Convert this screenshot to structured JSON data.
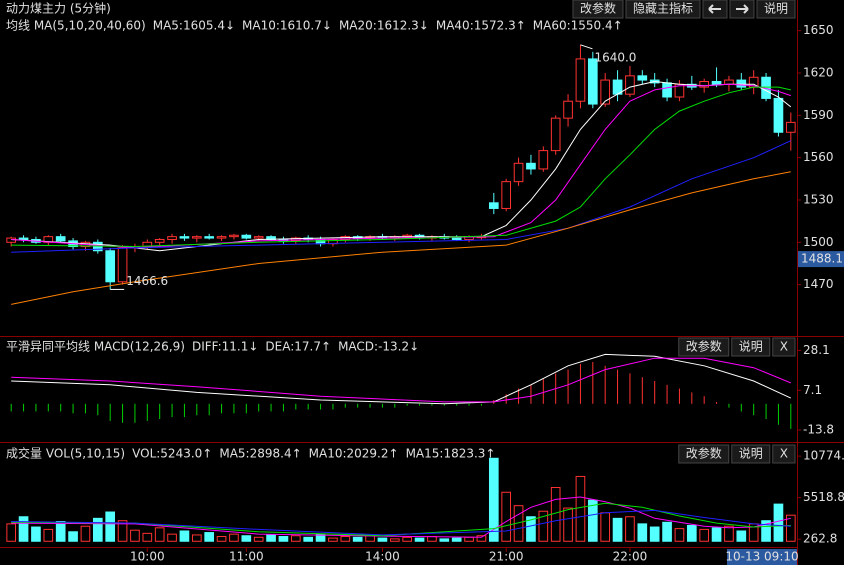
{
  "chart_data": [
    {
      "type": "candlestick",
      "title": "动力煤主力 (5分钟)",
      "label": "均线 MA(5,10,20,40,60)",
      "buttons": [
        "改参数",
        "隐藏主指标",
        "说明"
      ],
      "up_color": "#ff3232",
      "down_color": "#54ffff",
      "ylim": [
        1435,
        1659
      ],
      "yticks": [
        1650,
        1620,
        1590,
        1560,
        1530,
        1500,
        1470
      ],
      "current_price": 1488.1,
      "high_label": {
        "value": 1640,
        "label": "1640.0"
      },
      "low_label": {
        "value": 1466.6,
        "label": "1466.6"
      },
      "candles": [
        [
          1500,
          1504,
          1497,
          1503
        ],
        [
          1503,
          1505,
          1500,
          1502
        ],
        [
          1502,
          1504,
          1499,
          1500
        ],
        [
          1500,
          1505,
          1498,
          1504
        ],
        [
          1504,
          1506,
          1500,
          1501
        ],
        [
          1501,
          1503,
          1495,
          1497
        ],
        [
          1497,
          1501,
          1494,
          1500
        ],
        [
          1500,
          1502,
          1492,
          1494
        ],
        [
          1494,
          1496,
          1466.6,
          1472
        ],
        [
          1472,
          1498,
          1470,
          1496
        ],
        [
          1496,
          1499,
          1493,
          1497
        ],
        [
          1497,
          1502,
          1495,
          1500
        ],
        [
          1500,
          1503,
          1497,
          1502
        ],
        [
          1502,
          1506,
          1499,
          1504
        ],
        [
          1504,
          1506,
          1501,
          1503
        ],
        [
          1503,
          1505,
          1500,
          1504
        ],
        [
          1504,
          1506,
          1502,
          1503
        ],
        [
          1503,
          1505,
          1501,
          1504
        ],
        [
          1504,
          1506,
          1502,
          1505
        ],
        [
          1505,
          1506,
          1502,
          1503
        ],
        [
          1503,
          1505,
          1501,
          1504
        ],
        [
          1504,
          1505,
          1501,
          1502
        ],
        [
          1502,
          1504,
          1499,
          1501
        ],
        [
          1501,
          1504,
          1499,
          1503
        ],
        [
          1503,
          1505,
          1500,
          1502
        ],
        [
          1502,
          1504,
          1497,
          1499
        ],
        [
          1499,
          1503,
          1497,
          1502
        ],
        [
          1502,
          1505,
          1500,
          1504
        ],
        [
          1504,
          1505,
          1501,
          1503
        ],
        [
          1503,
          1505,
          1501,
          1504
        ],
        [
          1504,
          1506,
          1502,
          1503
        ],
        [
          1503,
          1505,
          1501,
          1504
        ],
        [
          1504,
          1506,
          1503,
          1505
        ],
        [
          1505,
          1506,
          1502,
          1503
        ],
        [
          1503,
          1505,
          1501,
          1504
        ],
        [
          1504,
          1506,
          1502,
          1503
        ],
        [
          1503,
          1505,
          1501,
          1502
        ],
        [
          1502,
          1505,
          1500,
          1504
        ],
        [
          1504,
          1506,
          1502,
          1504
        ],
        [
          1528,
          1535,
          1520,
          1524
        ],
        [
          1524,
          1545,
          1522,
          1543
        ],
        [
          1543,
          1560,
          1540,
          1556
        ],
        [
          1556,
          1562,
          1548,
          1552
        ],
        [
          1552,
          1568,
          1550,
          1565
        ],
        [
          1565,
          1590,
          1562,
          1588
        ],
        [
          1588,
          1605,
          1582,
          1600
        ],
        [
          1600,
          1640,
          1595,
          1630
        ],
        [
          1630,
          1635,
          1595,
          1598
        ],
        [
          1598,
          1620,
          1596,
          1615
        ],
        [
          1615,
          1622,
          1600,
          1605
        ],
        [
          1605,
          1625,
          1603,
          1618
        ],
        [
          1618,
          1622,
          1612,
          1615
        ],
        [
          1615,
          1620,
          1610,
          1613
        ],
        [
          1613,
          1616,
          1600,
          1603
        ],
        [
          1603,
          1615,
          1600,
          1612
        ],
        [
          1612,
          1618,
          1608,
          1610
        ],
        [
          1610,
          1616,
          1606,
          1614
        ],
        [
          1614,
          1624,
          1610,
          1612
        ],
        [
          1612,
          1618,
          1607,
          1615
        ],
        [
          1615,
          1620,
          1608,
          1610
        ],
        [
          1610,
          1622,
          1605,
          1617
        ],
        [
          1617,
          1620,
          1600,
          1602
        ],
        [
          1602,
          1608,
          1575,
          1578
        ],
        [
          1578,
          1592,
          1565,
          1585
        ]
      ],
      "series": [
        {
          "name": "MA5:1605.4↓",
          "color": "#ffffff",
          "x": [
            0,
            8,
            12,
            20,
            30,
            38,
            40,
            42,
            44,
            46,
            48,
            50,
            52,
            54,
            56,
            58,
            60,
            62,
            63
          ],
          "values": [
            1502,
            1498,
            1494,
            1502,
            1504,
            1504,
            1512,
            1530,
            1552,
            1580,
            1600,
            1610,
            1614,
            1612,
            1611,
            1612,
            1612,
            1603,
            1596
          ]
        },
        {
          "name": "MA10:1610.7↓",
          "color": "#ff00ff",
          "x": [
            0,
            10,
            20,
            30,
            39,
            42,
            44,
            46,
            48,
            50,
            52,
            54,
            56,
            58,
            60,
            62,
            63
          ],
          "values": [
            1502,
            1496,
            1501,
            1503,
            1504,
            1514,
            1530,
            1555,
            1580,
            1600,
            1608,
            1611,
            1611,
            1612,
            1611,
            1607,
            1604
          ]
        },
        {
          "name": "MA20:1612.3↓",
          "color": "#00e000",
          "x": [
            0,
            10,
            20,
            30,
            40,
            44,
            46,
            48,
            50,
            52,
            54,
            56,
            58,
            60,
            62,
            63
          ],
          "values": [
            1498,
            1497,
            1500,
            1502,
            1505,
            1515,
            1525,
            1545,
            1562,
            1580,
            1593,
            1600,
            1606,
            1610,
            1610,
            1608
          ]
        },
        {
          "name": "MA40:1572.3↑",
          "color": "#2020ff",
          "x": [
            0,
            10,
            20,
            30,
            40,
            45,
            50,
            55,
            60,
            63
          ],
          "values": [
            1493,
            1496,
            1498,
            1500,
            1502,
            1510,
            1525,
            1545,
            1560,
            1572
          ]
        },
        {
          "name": "MA60:1550.4↑",
          "color": "#ff8000",
          "x": [
            0,
            5,
            10,
            20,
            30,
            40,
            45,
            50,
            55,
            60,
            63
          ],
          "values": [
            1456,
            1465,
            1472,
            1485,
            1493,
            1498,
            1510,
            1523,
            1535,
            1545,
            1550
          ]
        }
      ]
    },
    {
      "type": "macd",
      "label": "平滑异同平均线 MACD(12,26,9)",
      "buttons": [
        "改参数",
        "说明",
        "X"
      ],
      "ylim": [
        -18,
        32
      ],
      "yticks": [
        28.1,
        7.1,
        -13.8
      ],
      "up_color": "#ff3232",
      "down_color": "#00d000",
      "values": [
        -4,
        -4,
        -4,
        -4,
        -4,
        -5,
        -5,
        -6,
        -9,
        -10,
        -10,
        -9,
        -8,
        -7,
        -7,
        -6,
        -6,
        -5,
        -5,
        -5,
        -4,
        -4,
        -4,
        -3,
        -3,
        -3,
        -3,
        -2,
        -2,
        -2,
        -2,
        -2,
        -1,
        -1,
        -1,
        -1,
        -1,
        -1,
        -1,
        2,
        5,
        8,
        10,
        13,
        16,
        18,
        21,
        22,
        20,
        18,
        16,
        14,
        12,
        10,
        8,
        6,
        4,
        1,
        -2,
        -4,
        -6,
        -8,
        -11,
        -13.2
      ],
      "series": [
        {
          "name": "DIFF:11.1↓",
          "color": "#ffffff",
          "x": [
            0,
            8,
            15,
            25,
            35,
            39,
            42,
            45,
            48,
            52,
            56,
            60,
            63
          ],
          "values": [
            12,
            10,
            6,
            2,
            0,
            1,
            10,
            20,
            26,
            25,
            20,
            12,
            3
          ]
        },
        {
          "name": "DEA:17.7↑",
          "color": "#ff00ff",
          "x": [
            0,
            8,
            15,
            25,
            35,
            39,
            42,
            45,
            48,
            52,
            56,
            60,
            63
          ],
          "values": [
            14,
            12,
            9,
            4,
            1,
            1,
            4,
            10,
            18,
            24,
            24,
            19,
            11
          ]
        }
      ],
      "macd_label": "MACD:-13.2↓",
      "macd_label_color": "#00e000"
    },
    {
      "type": "bar",
      "label": "成交量 VOL(5,10,15)",
      "buttons": [
        "改参数",
        "说明",
        "X"
      ],
      "ylim": [
        -600,
        11800
      ],
      "yticks": [
        10774.8,
        5518.8,
        262.8
      ],
      "vol_label": "VOL:5243.0↑",
      "values": [
        2200,
        3100,
        1800,
        1500,
        2500,
        1200,
        1900,
        2900,
        3700,
        2600,
        1400,
        1000,
        1700,
        900,
        1300,
        800,
        1100,
        600,
        900,
        700,
        500,
        800,
        600,
        700,
        500,
        900,
        400,
        600,
        500,
        700,
        400,
        300,
        500,
        400,
        600,
        300,
        400,
        500,
        700,
        10500,
        6200,
        4500,
        3100,
        3800,
        6800,
        4200,
        8200,
        5200,
        3600,
        2900,
        3100,
        2200,
        1800,
        2400,
        1600,
        2000,
        1500,
        1700,
        1900,
        1300,
        2200,
        2600,
        4700,
        3300
      ],
      "series": [
        {
          "name": "MA5:2898.4↑",
          "color": "#ff00ff",
          "x": [
            0,
            10,
            20,
            30,
            38,
            40,
            42,
            44,
            46,
            48,
            50,
            52,
            54,
            56,
            58,
            60,
            63
          ],
          "values": [
            2300,
            2200,
            900,
            650,
            500,
            2500,
            4300,
            5300,
            5600,
            5000,
            4200,
            2900,
            2400,
            1900,
            1700,
            1800,
            2900
          ]
        },
        {
          "name": "MA10:2029.2↑",
          "color": "#00e000",
          "x": [
            0,
            10,
            20,
            30,
            39,
            42,
            45,
            48,
            51,
            54,
            57,
            60,
            63
          ],
          "values": [
            2400,
            2300,
            1200,
            700,
            1600,
            2700,
            4000,
            4800,
            4300,
            3200,
            2300,
            1800,
            2000
          ]
        },
        {
          "name": "MA15:1823.3↑",
          "color": "#2020ff",
          "x": [
            0,
            10,
            20,
            30,
            40,
            44,
            48,
            52,
            56,
            60,
            63
          ],
          "values": [
            2500,
            2300,
            1500,
            800,
            1300,
            2600,
            3600,
            3900,
            3000,
            2200,
            1900
          ]
        }
      ],
      "xticks": [
        {
          "value": 11,
          "label": "10:00"
        },
        {
          "value": 19,
          "label": "11:00"
        },
        {
          "value": 30,
          "label": "14:00"
        },
        {
          "value": 40,
          "label": "21:00"
        },
        {
          "value": 50,
          "label": "22:00"
        }
      ],
      "cursor_time": "10-13 09:10"
    }
  ]
}
